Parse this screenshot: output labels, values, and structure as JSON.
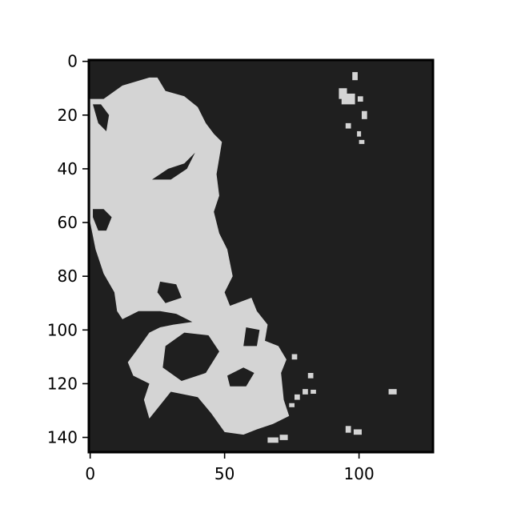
{
  "figure": {
    "background": "#ffffff"
  },
  "chart_data": {
    "type": "heatmap",
    "title": "",
    "xlabel": "",
    "ylabel": "",
    "image_shape": {
      "rows": 146,
      "cols": 128
    },
    "xlim": [
      -0.5,
      127.5
    ],
    "ylim": [
      145.5,
      -0.5
    ],
    "x_ticks": [
      0,
      50,
      100
    ],
    "x_tick_labels": [
      "0",
      "50",
      "100"
    ],
    "y_ticks": [
      0,
      20,
      40,
      60,
      80,
      100,
      120,
      140
    ],
    "y_tick_labels": [
      "0",
      "20",
      "40",
      "60",
      "80",
      "100",
      "120",
      "140"
    ],
    "grid": false,
    "legend": "none",
    "colormap": {
      "0": "#1f1f1f",
      "1": "#d4d4d4"
    },
    "mask_value_foreground": 1,
    "mask_value_background": 0,
    "regions_foreground": [
      {
        "name": "main-landmass",
        "outline": [
          [
            0,
            14
          ],
          [
            5,
            14
          ],
          [
            12,
            9
          ],
          [
            22,
            6
          ],
          [
            25,
            6
          ],
          [
            28,
            11
          ],
          [
            35,
            13
          ],
          [
            40,
            17
          ],
          [
            43,
            23
          ],
          [
            46,
            27
          ],
          [
            49,
            30
          ],
          [
            48,
            36
          ],
          [
            47,
            42
          ],
          [
            48,
            50
          ],
          [
            46,
            56
          ],
          [
            48,
            64
          ],
          [
            51,
            70
          ],
          [
            53,
            80
          ],
          [
            50,
            86
          ],
          [
            52,
            91
          ],
          [
            60,
            88
          ],
          [
            62,
            93
          ],
          [
            66,
            98
          ],
          [
            65,
            104
          ],
          [
            70,
            106
          ],
          [
            73,
            111
          ],
          [
            71,
            116
          ],
          [
            72,
            126
          ],
          [
            74,
            132
          ],
          [
            68,
            135
          ],
          [
            62,
            137
          ],
          [
            57,
            139
          ],
          [
            50,
            138
          ],
          [
            45,
            131
          ],
          [
            40,
            125
          ],
          [
            30,
            123
          ],
          [
            22,
            133
          ],
          [
            20,
            126
          ],
          [
            22,
            120
          ],
          [
            16,
            117
          ],
          [
            14,
            112
          ],
          [
            17,
            108
          ],
          [
            22,
            101
          ],
          [
            26,
            99
          ],
          [
            31,
            98
          ],
          [
            38,
            97
          ],
          [
            32,
            94
          ],
          [
            26,
            93
          ],
          [
            18,
            93
          ],
          [
            12,
            96
          ],
          [
            10,
            93
          ],
          [
            9,
            86
          ],
          [
            5,
            79
          ],
          [
            2,
            70
          ],
          [
            0,
            60
          ],
          [
            0,
            40
          ],
          [
            0,
            25
          ]
        ]
      }
    ],
    "regions_background": [
      {
        "name": "inlet-a",
        "outline": [
          [
            23,
            44
          ],
          [
            29,
            40
          ],
          [
            35,
            38
          ],
          [
            39,
            34
          ],
          [
            36,
            40
          ],
          [
            30,
            44
          ]
        ]
      },
      {
        "name": "inlet-b",
        "outline": [
          [
            1,
            16
          ],
          [
            4,
            16
          ],
          [
            7,
            20
          ],
          [
            6,
            26
          ],
          [
            3,
            23
          ]
        ]
      },
      {
        "name": "inlet-c",
        "outline": [
          [
            1,
            55
          ],
          [
            5,
            55
          ],
          [
            8,
            58
          ],
          [
            6,
            63
          ],
          [
            3,
            63
          ],
          [
            1,
            58
          ]
        ]
      },
      {
        "name": "inlet-d",
        "outline": [
          [
            26,
            82
          ],
          [
            32,
            83
          ],
          [
            34,
            88
          ],
          [
            28,
            90
          ],
          [
            25,
            86
          ]
        ]
      },
      {
        "name": "inlet-e",
        "outline": [
          [
            28,
            106
          ],
          [
            35,
            101
          ],
          [
            44,
            102
          ],
          [
            48,
            108
          ],
          [
            43,
            116
          ],
          [
            34,
            119
          ],
          [
            27,
            114
          ]
        ]
      },
      {
        "name": "inlet-f",
        "outline": [
          [
            51,
            117
          ],
          [
            57,
            114
          ],
          [
            61,
            116
          ],
          [
            58,
            121
          ],
          [
            52,
            121
          ]
        ]
      },
      {
        "name": "inlet-g",
        "outline": [
          [
            58,
            99
          ],
          [
            63,
            100
          ],
          [
            62,
            106
          ],
          [
            57,
            106
          ]
        ]
      }
    ],
    "islands": [
      [
        98.5,
        5.5,
        2,
        3
      ],
      [
        94,
        12,
        3,
        4
      ],
      [
        96,
        14,
        5,
        4
      ],
      [
        100.5,
        14,
        2,
        2
      ],
      [
        102,
        20,
        2,
        3
      ],
      [
        96,
        24,
        2,
        2
      ],
      [
        100,
        27,
        1.5,
        2
      ],
      [
        101,
        30,
        2,
        1.5
      ],
      [
        96,
        137,
        2,
        2.5
      ],
      [
        99.5,
        138,
        3,
        2
      ],
      [
        112.5,
        123,
        3,
        2
      ],
      [
        72,
        140,
        3,
        2
      ],
      [
        68,
        141,
        4,
        2
      ],
      [
        80,
        123,
        2,
        2
      ],
      [
        77,
        125,
        2,
        2
      ],
      [
        83,
        123,
        2,
        1.5
      ],
      [
        75,
        128,
        2,
        1.5
      ],
      [
        82,
        117,
        2,
        2
      ],
      [
        76,
        110,
        2,
        2
      ],
      [
        66,
        109,
        2,
        2
      ],
      [
        63,
        110,
        2,
        2
      ]
    ]
  }
}
